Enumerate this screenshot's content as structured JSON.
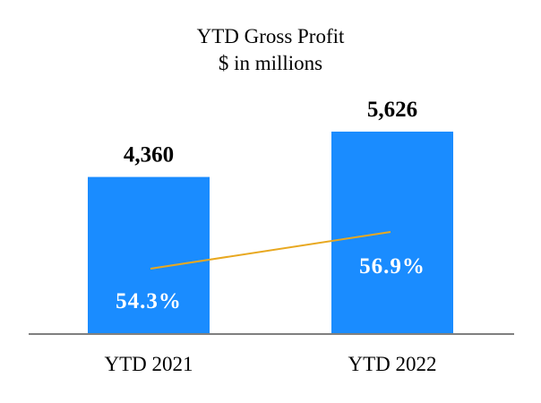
{
  "chart_data": {
    "type": "bar",
    "title": "YTD Gross Profit",
    "subtitle": "$ in millions",
    "categories": [
      "YTD 2021",
      "YTD 2022"
    ],
    "series": [
      {
        "type": "bar",
        "values": [
          4360,
          5626
        ],
        "labels": [
          "4,360",
          "5,626"
        ],
        "color": "#1a8cff"
      },
      {
        "type": "line",
        "values": [
          54.3,
          56.9
        ],
        "labels": [
          "54.3%",
          "56.9%"
        ],
        "color": "#e8a820"
      }
    ],
    "ylim": [
      0,
      6000
    ],
    "grid": false,
    "legend": "none",
    "axis_color": "#808080"
  }
}
